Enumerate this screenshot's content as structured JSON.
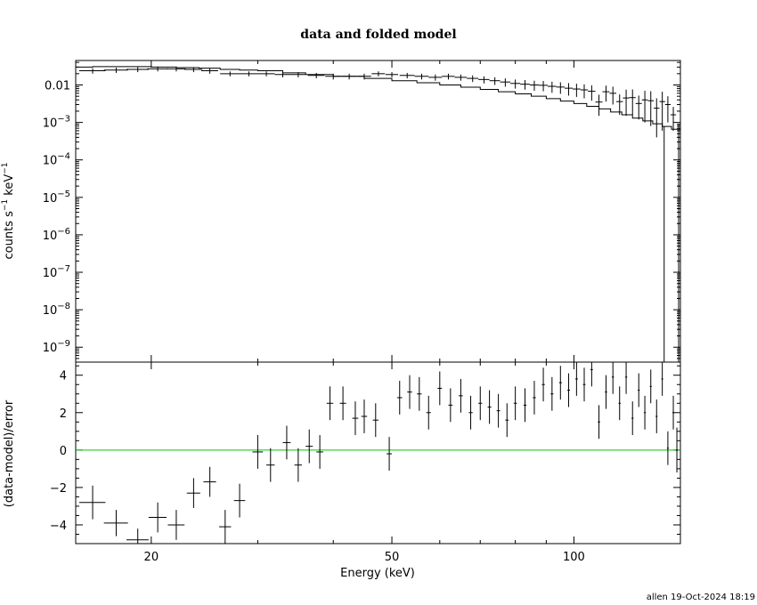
{
  "chart_data": [
    {
      "type": "scatter",
      "panel": "top",
      "title": "data and folded model",
      "ylabel": "counts s⁻¹ keV⁻¹",
      "ylabel_parts": [
        "counts s",
        "−1",
        " keV",
        "−1"
      ],
      "xscale": "log",
      "yscale": "log",
      "xlim": [
        15,
        150
      ],
      "ylim": [
        4e-10,
        0.045
      ],
      "ytick_labels": [
        {
          "y": 0.01,
          "base": "0.01",
          "exp": ""
        },
        {
          "y": 0.001,
          "base": "10",
          "exp": "−3"
        },
        {
          "y": 0.0001,
          "base": "10",
          "exp": "−4"
        },
        {
          "y": 1e-05,
          "base": "10",
          "exp": "−5"
        },
        {
          "y": 1e-06,
          "base": "10",
          "exp": "−6"
        },
        {
          "y": 1e-07,
          "base": "10",
          "exp": "−7"
        },
        {
          "y": 1e-08,
          "base": "10",
          "exp": "−8"
        },
        {
          "y": 1e-09,
          "base": "10",
          "exp": "−9"
        }
      ],
      "series": [
        {
          "kind": "data",
          "points": [
            [
              16.0,
              0.024,
              0.8,
              0.004
            ],
            [
              17.5,
              0.025,
              0.8,
              0.004
            ],
            [
              19.0,
              0.026,
              0.8,
              0.004
            ],
            [
              20.5,
              0.027,
              0.8,
              0.004
            ],
            [
              22.0,
              0.027,
              0.8,
              0.004
            ],
            [
              23.5,
              0.026,
              0.8,
              0.004
            ],
            [
              25.0,
              0.024,
              0.8,
              0.004
            ],
            [
              27.0,
              0.02,
              1.0,
              0.003
            ],
            [
              29.0,
              0.02,
              1.0,
              0.003
            ],
            [
              31.0,
              0.02,
              1.0,
              0.003
            ],
            [
              33.0,
              0.019,
              1.0,
              0.003
            ],
            [
              35.0,
              0.019,
              1.0,
              0.003
            ],
            [
              37.5,
              0.018,
              1.2,
              0.003
            ],
            [
              40.0,
              0.017,
              1.2,
              0.003
            ],
            [
              42.5,
              0.017,
              1.2,
              0.003
            ],
            [
              45.0,
              0.017,
              1.2,
              0.003
            ],
            [
              47.5,
              0.02,
              1.2,
              0.003
            ],
            [
              50.0,
              0.019,
              1.2,
              0.003
            ],
            [
              53.0,
              0.018,
              1.5,
              0.003
            ],
            [
              56.0,
              0.017,
              1.5,
              0.003
            ],
            [
              59.0,
              0.016,
              1.5,
              0.003
            ],
            [
              62.0,
              0.017,
              1.5,
              0.003
            ],
            [
              65.0,
              0.016,
              1.5,
              0.003
            ],
            [
              68.0,
              0.015,
              1.5,
              0.003
            ],
            [
              71.0,
              0.014,
              1.5,
              0.003
            ],
            [
              74.0,
              0.013,
              1.5,
              0.003
            ],
            [
              77.0,
              0.012,
              1.5,
              0.003
            ],
            [
              80.0,
              0.011,
              1.5,
              0.003
            ],
            [
              83.0,
              0.0105,
              1.5,
              0.003
            ],
            [
              86.0,
              0.01,
              1.5,
              0.003
            ],
            [
              89.0,
              0.0098,
              1.5,
              0.003
            ],
            [
              92.0,
              0.0092,
              1.5,
              0.003
            ],
            [
              95.0,
              0.0088,
              1.5,
              0.003
            ],
            [
              98.0,
              0.0082,
              1.5,
              0.003
            ],
            [
              101.0,
              0.0078,
              1.5,
              0.003
            ],
            [
              104.0,
              0.0074,
              1.5,
              0.003
            ],
            [
              107.0,
              0.0068,
              1.5,
              0.003
            ],
            [
              110.0,
              0.0035,
              1.5,
              0.002
            ],
            [
              113.0,
              0.0066,
              1.5,
              0.003
            ],
            [
              116.0,
              0.006,
              1.5,
              0.003
            ],
            [
              119.0,
              0.0036,
              1.5,
              0.002
            ],
            [
              122.0,
              0.0045,
              1.5,
              0.003
            ],
            [
              125.0,
              0.0046,
              1.5,
              0.003
            ],
            [
              128.0,
              0.0032,
              1.5,
              0.002
            ],
            [
              131.0,
              0.004,
              1.5,
              0.003
            ],
            [
              134.0,
              0.0038,
              1.5,
              0.003
            ],
            [
              137.0,
              0.0024,
              1.5,
              0.002
            ],
            [
              140.0,
              0.0036,
              1.5,
              0.003
            ],
            [
              143.0,
              0.003,
              1.5,
              0.002
            ],
            [
              146.0,
              0.0016,
              1.5,
              0.001
            ]
          ]
        },
        {
          "kind": "model",
          "x": [
            15,
            16,
            17,
            18,
            19,
            20,
            22,
            24,
            26,
            28,
            30,
            33,
            36,
            40,
            45,
            50,
            55,
            60,
            65,
            70,
            75,
            80,
            85,
            90,
            95,
            100,
            105,
            110,
            115,
            120,
            125,
            130,
            135,
            140,
            145
          ],
          "y": [
            0.03,
            0.031,
            0.031,
            0.031,
            0.031,
            0.03,
            0.029,
            0.028,
            0.026,
            0.025,
            0.024,
            0.021,
            0.019,
            0.017,
            0.015,
            0.013,
            0.0115,
            0.01,
            0.0087,
            0.0076,
            0.0066,
            0.0058,
            0.005,
            0.0043,
            0.0037,
            0.0032,
            0.0027,
            0.0023,
            0.0019,
            0.0016,
            0.0013,
            0.0011,
            0.00092,
            0.00078,
            0.00066
          ]
        }
      ],
      "model_cutoff_x": 141
    },
    {
      "type": "scatter",
      "panel": "bottom",
      "ylabel": "(data-model)/error",
      "xlabel": "Energy (keV)",
      "xscale": "log",
      "xlim": [
        15,
        150
      ],
      "ylim": [
        -5,
        4.7
      ],
      "xticks": [
        20,
        50,
        100
      ],
      "yticks": [
        -4,
        -2,
        0,
        2,
        4
      ],
      "zero_line_color": "#00cc00",
      "points": [
        [
          16.0,
          -2.8,
          0.8,
          0.9
        ],
        [
          17.5,
          -3.9,
          0.8,
          0.7
        ],
        [
          19.0,
          -4.8,
          0.8,
          0.6
        ],
        [
          20.5,
          -3.6,
          0.7,
          0.8
        ],
        [
          22.0,
          -4.0,
          0.7,
          0.8
        ],
        [
          23.5,
          -2.3,
          0.6,
          0.8
        ],
        [
          25.0,
          -1.7,
          0.6,
          0.8
        ],
        [
          26.5,
          -4.1,
          0.6,
          0.9
        ],
        [
          28.0,
          -2.7,
          0.6,
          0.9
        ],
        [
          30.0,
          -0.1,
          0.6,
          0.9
        ],
        [
          31.5,
          -0.8,
          0.5,
          0.9
        ],
        [
          33.5,
          0.4,
          0.5,
          0.9
        ],
        [
          35.0,
          -0.8,
          0.5,
          0.9
        ],
        [
          36.5,
          0.2,
          0.5,
          0.9
        ],
        [
          38.0,
          -0.1,
          0.5,
          0.9
        ],
        [
          39.5,
          2.5,
          0.5,
          0.9
        ],
        [
          41.5,
          2.5,
          0.5,
          0.9
        ],
        [
          43.5,
          1.7,
          0.5,
          0.9
        ],
        [
          45.0,
          1.8,
          0.5,
          0.9
        ],
        [
          47.0,
          1.6,
          0.5,
          0.9
        ],
        [
          49.5,
          -0.2,
          0.5,
          0.9
        ],
        [
          51.5,
          2.8,
          0.5,
          0.9
        ],
        [
          53.5,
          3.1,
          0.5,
          0.9
        ],
        [
          55.5,
          3.0,
          0.5,
          0.9
        ],
        [
          57.5,
          2.0,
          0.5,
          0.9
        ],
        [
          60.0,
          3.3,
          0.5,
          0.9
        ],
        [
          62.5,
          2.4,
          0.5,
          0.9
        ],
        [
          65.0,
          2.9,
          0.5,
          0.9
        ],
        [
          67.5,
          2.0,
          0.5,
          0.9
        ],
        [
          70.0,
          2.5,
          0.5,
          0.9
        ],
        [
          72.5,
          2.3,
          0.5,
          0.9
        ],
        [
          75.0,
          2.1,
          0.5,
          0.9
        ],
        [
          77.5,
          1.6,
          0.5,
          0.9
        ],
        [
          80.0,
          2.5,
          0.5,
          0.9
        ],
        [
          83.0,
          2.4,
          0.5,
          0.9
        ],
        [
          86.0,
          2.8,
          0.5,
          0.9
        ],
        [
          89.0,
          3.5,
          0.5,
          0.9
        ],
        [
          92.0,
          3.0,
          0.5,
          0.9
        ],
        [
          95.0,
          3.6,
          0.5,
          0.9
        ],
        [
          98.0,
          3.2,
          0.5,
          0.9
        ],
        [
          101.0,
          3.8,
          0.5,
          0.9
        ],
        [
          104.0,
          3.5,
          0.5,
          0.9
        ],
        [
          107.0,
          4.3,
          0.5,
          0.9
        ],
        [
          110.0,
          1.5,
          0.5,
          0.9
        ],
        [
          113.0,
          3.1,
          0.5,
          0.9
        ],
        [
          116.0,
          3.9,
          0.5,
          0.9
        ],
        [
          119.0,
          2.5,
          0.5,
          0.9
        ],
        [
          122.0,
          3.9,
          0.5,
          0.9
        ],
        [
          125.0,
          1.7,
          0.5,
          0.9
        ],
        [
          128.0,
          3.2,
          0.5,
          0.9
        ],
        [
          131.0,
          2.0,
          0.5,
          0.9
        ],
        [
          134.0,
          3.4,
          0.5,
          0.9
        ],
        [
          137.0,
          1.8,
          0.5,
          0.9
        ],
        [
          140.0,
          3.8,
          0.5,
          0.9
        ],
        [
          143.0,
          0.1,
          0.5,
          0.9
        ],
        [
          146.0,
          2.0,
          0.5,
          0.9
        ],
        [
          148.0,
          0.0,
          0.5,
          1.2
        ]
      ]
    }
  ],
  "footer": "allen 19-Oct-2024 18:19"
}
